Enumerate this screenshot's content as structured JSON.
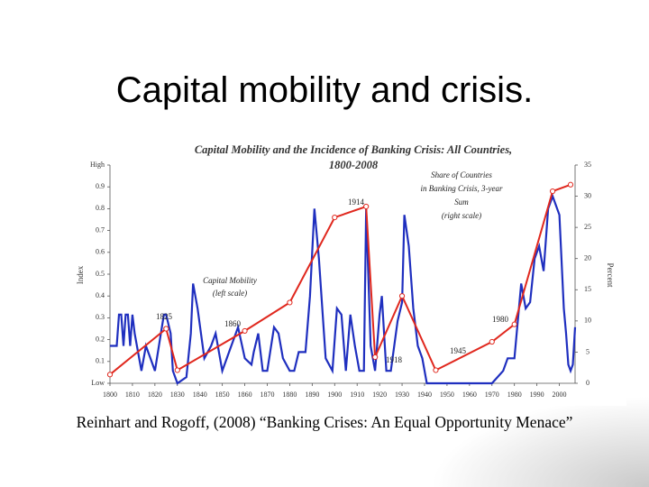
{
  "slide_title": "Capital mobility and crisis.",
  "caption": "Reinhart and Rogoff, (2008) “Banking Crises: An Equal Opportunity Menace”",
  "chart_data": {
    "type": "line",
    "title_lines": [
      "Capital Mobility and the Incidence of Banking Crisis: All Countries,",
      "1800-2008"
    ],
    "ylabel": "Index",
    "y2label": "Percent",
    "xlim": [
      1800,
      2007
    ],
    "xticks": [
      1800,
      1810,
      1820,
      1830,
      1840,
      1850,
      1860,
      1870,
      1880,
      1890,
      1900,
      1910,
      1920,
      1930,
      1940,
      1950,
      1960,
      1970,
      1980,
      1990,
      2000
    ],
    "ylim": [
      0,
      1
    ],
    "yticks": [
      {
        "value": 0,
        "label": "Low"
      },
      0.1,
      0.2,
      0.3,
      0.4,
      0.5,
      0.6,
      0.7,
      0.8,
      0.9,
      {
        "value": 1,
        "label": "High"
      }
    ],
    "y2lim": [
      0,
      35
    ],
    "y2ticks": [
      0,
      5,
      10,
      15,
      20,
      25,
      30,
      35
    ],
    "series": [
      {
        "name": "Share of Countries in Banking Crisis, 3-year Sum (right scale)",
        "color": "#1f2fbf",
        "axis": "y2",
        "x": [
          1800,
          1803,
          1804,
          1805,
          1806,
          1807,
          1808,
          1809,
          1810,
          1811,
          1812,
          1814,
          1816,
          1818,
          1820,
          1824,
          1825,
          1827,
          1828,
          1830,
          1834,
          1836,
          1837,
          1839,
          1842,
          1845,
          1847,
          1850,
          1853,
          1857,
          1860,
          1863,
          1864,
          1866,
          1868,
          1870,
          1873,
          1875,
          1877,
          1880,
          1882,
          1884,
          1887,
          1889,
          1891,
          1893,
          1896,
          1899,
          1901,
          1903,
          1905,
          1907,
          1909,
          1911,
          1913,
          1914,
          1916,
          1918,
          1920,
          1921,
          1923,
          1925,
          1928,
          1930,
          1931,
          1933,
          1935,
          1937,
          1939,
          1941,
          1945,
          1950,
          1960,
          1970,
          1975,
          1977,
          1980,
          1981,
          1983,
          1985,
          1987,
          1989,
          1991,
          1993,
          1995,
          1997,
          1998,
          2000,
          2002,
          2003,
          2004,
          2005,
          2006,
          2007
        ],
        "values": [
          6,
          6,
          11,
          11,
          6,
          11,
          11,
          6,
          11,
          8,
          6,
          2,
          6,
          4,
          2,
          11,
          11,
          8,
          2,
          0,
          1,
          8,
          16,
          12,
          4,
          6,
          8,
          2,
          5,
          9,
          4,
          3,
          5,
          8,
          2,
          2,
          9,
          8,
          4,
          2,
          2,
          5,
          5,
          14,
          28,
          20,
          4,
          2,
          12,
          11,
          2,
          11,
          6,
          2,
          2,
          28,
          6,
          2,
          11,
          14,
          2,
          2,
          10,
          13,
          27,
          22,
          12,
          6,
          4,
          0,
          0,
          0,
          0,
          0,
          2,
          4,
          4,
          8,
          16,
          12,
          13,
          20,
          22,
          18,
          28,
          30,
          29,
          27,
          12,
          8,
          3,
          2,
          3,
          9
        ]
      },
      {
        "name": "Capital Mobility (left scale)",
        "color": "#e0281e",
        "axis": "y",
        "x": [
          1800,
          1825,
          1830,
          1860,
          1880,
          1900,
          1914,
          1918,
          1930,
          1945,
          1970,
          1980,
          1997,
          2005
        ],
        "values": [
          0.04,
          0.25,
          0.06,
          0.24,
          0.37,
          0.76,
          0.81,
          0.12,
          0.4,
          0.06,
          0.19,
          0.27,
          0.88,
          0.91
        ]
      }
    ],
    "annotations": [
      "1825",
      "1860",
      "1914",
      "1918",
      "1945",
      "1980",
      "Capital Mobility",
      "(left scale)",
      "Share of Countries",
      "in Banking Crisis, 3-year",
      "Sum",
      "(right scale)"
    ],
    "grid": false
  }
}
